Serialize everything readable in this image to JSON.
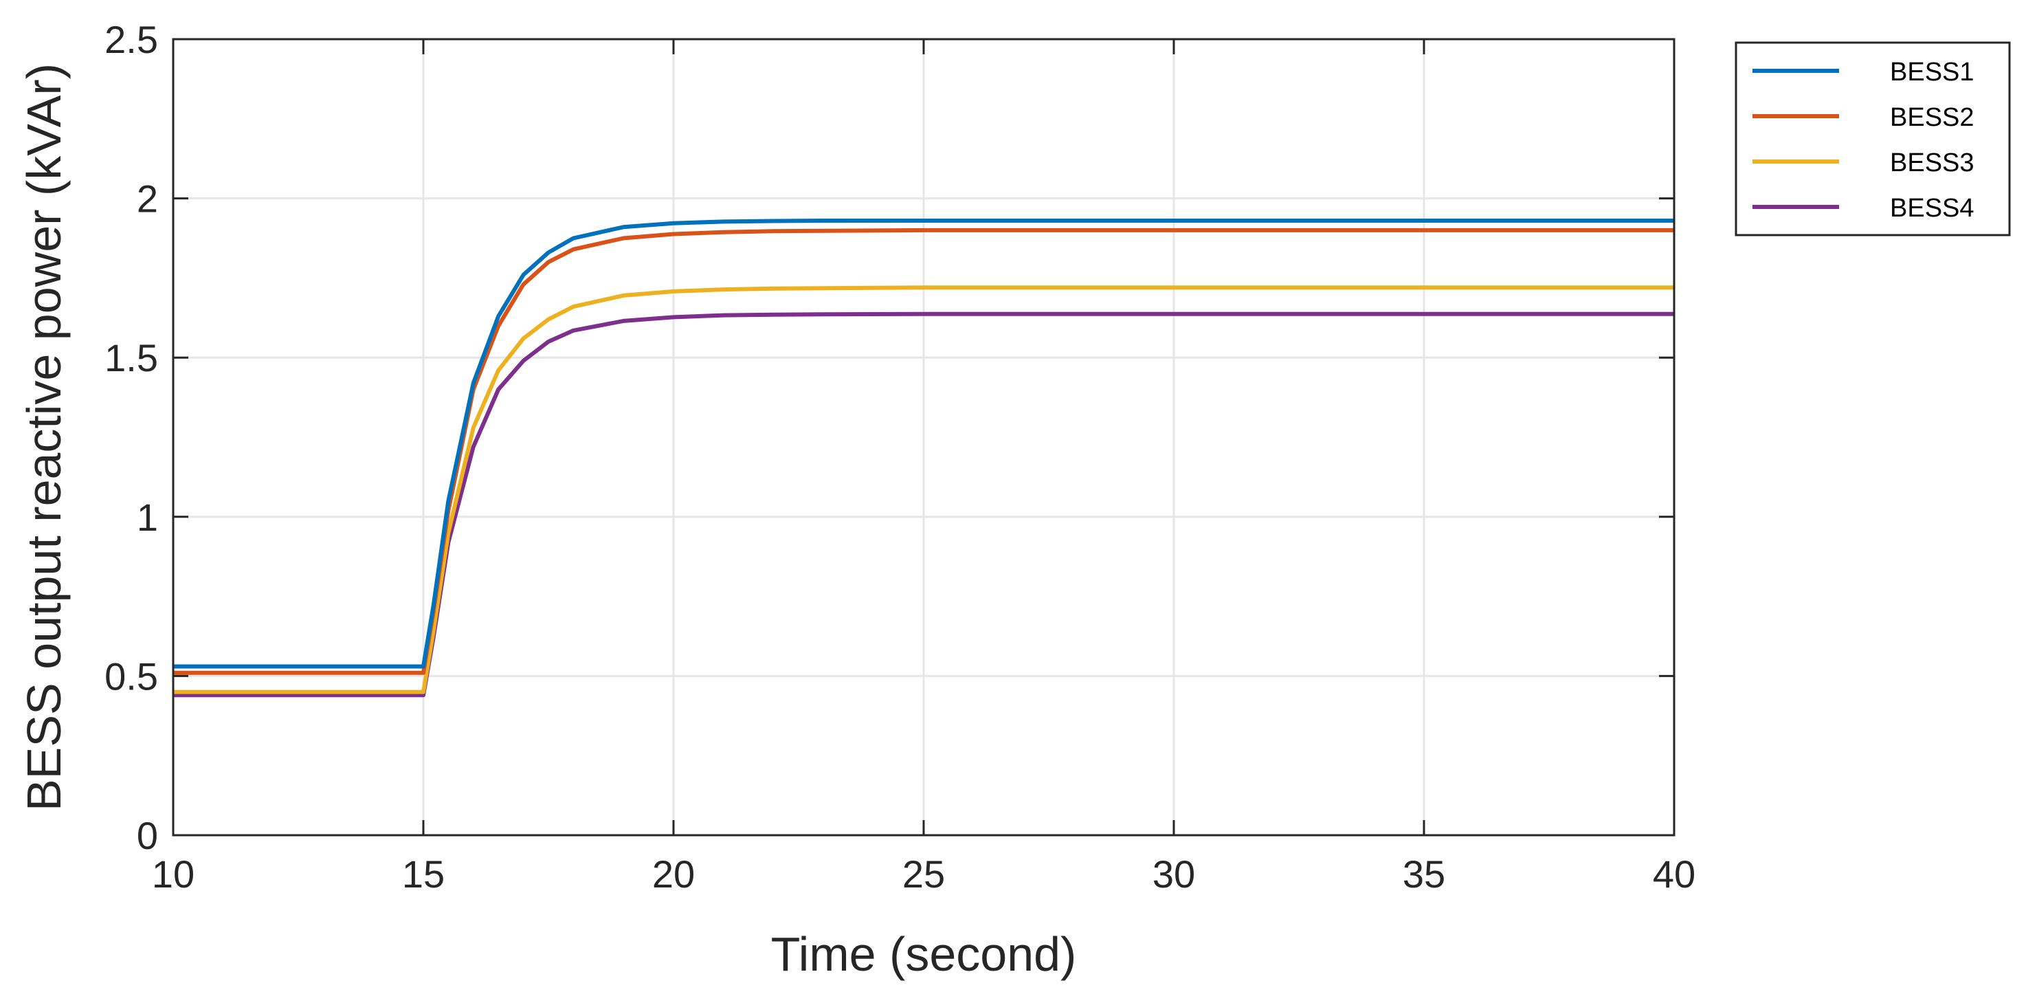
{
  "chart_data": {
    "type": "line",
    "title": "",
    "xlabel": "Time (second)",
    "ylabel": "BESS output reactive power (kVAr)",
    "xlim": [
      10,
      40
    ],
    "ylim": [
      0,
      2.5
    ],
    "xticks": [
      10,
      15,
      20,
      25,
      30,
      35,
      40
    ],
    "yticks": [
      0,
      0.5,
      1,
      1.5,
      2,
      2.5
    ],
    "xtick_labels": [
      "10",
      "15",
      "20",
      "25",
      "30",
      "35",
      "40"
    ],
    "ytick_labels": [
      "0",
      "0.5",
      "1",
      "1.5",
      "2",
      "2.5"
    ],
    "grid": true,
    "legend_position": "outside-top-right",
    "series": [
      {
        "name": "BESS1",
        "color": "#0072BD",
        "x": [
          10,
          15,
          15.2,
          15.5,
          16,
          16.5,
          17,
          17.5,
          18,
          19,
          20,
          21,
          22,
          23,
          25,
          30,
          35,
          40
        ],
        "y": [
          0.53,
          0.53,
          0.72,
          1.05,
          1.42,
          1.63,
          1.76,
          1.83,
          1.875,
          1.91,
          1.922,
          1.927,
          1.929,
          1.93,
          1.93,
          1.93,
          1.93,
          1.93
        ]
      },
      {
        "name": "BESS2",
        "color": "#D95319",
        "x": [
          10,
          15,
          15.2,
          15.5,
          16,
          16.5,
          17,
          17.5,
          18,
          19,
          20,
          21,
          22,
          23,
          25,
          30,
          35,
          40
        ],
        "y": [
          0.51,
          0.51,
          0.7,
          1.02,
          1.4,
          1.6,
          1.73,
          1.8,
          1.84,
          1.875,
          1.888,
          1.894,
          1.897,
          1.898,
          1.9,
          1.9,
          1.9,
          1.9
        ]
      },
      {
        "name": "BESS3",
        "color": "#EDB120",
        "x": [
          10,
          15,
          15.2,
          15.5,
          16,
          16.5,
          17,
          17.5,
          18,
          19,
          20,
          21,
          22,
          23,
          25,
          30,
          35,
          40
        ],
        "y": [
          0.45,
          0.45,
          0.64,
          0.95,
          1.28,
          1.46,
          1.56,
          1.62,
          1.66,
          1.695,
          1.708,
          1.714,
          1.717,
          1.718,
          1.72,
          1.72,
          1.72,
          1.72
        ]
      },
      {
        "name": "BESS4",
        "color": "#7E2F8E",
        "x": [
          10,
          15,
          15.2,
          15.5,
          16,
          16.5,
          17,
          17.5,
          18,
          19,
          20,
          21,
          22,
          23,
          25,
          30,
          35,
          40
        ],
        "y": [
          0.44,
          0.44,
          0.62,
          0.92,
          1.22,
          1.4,
          1.49,
          1.55,
          1.585,
          1.615,
          1.627,
          1.633,
          1.635,
          1.636,
          1.637,
          1.637,
          1.637,
          1.637
        ]
      }
    ]
  }
}
